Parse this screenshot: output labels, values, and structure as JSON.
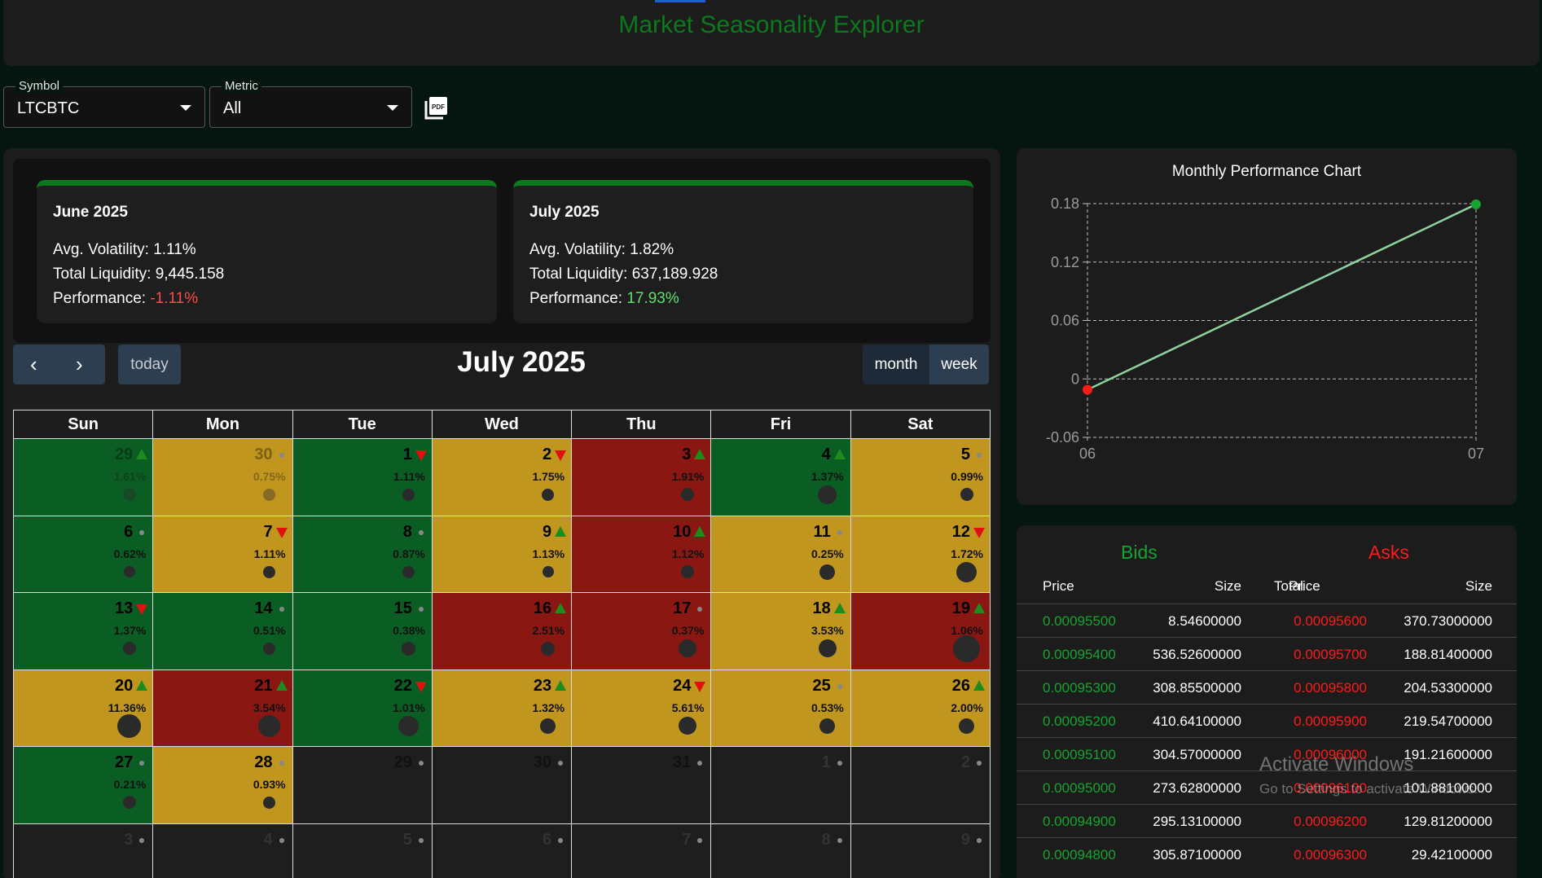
{
  "header": {
    "title": "Market Seasonality Explorer"
  },
  "controls": {
    "symbol": {
      "label": "Symbol",
      "value": "LTCBTC"
    },
    "metric": {
      "label": "Metric",
      "value": "All"
    },
    "pdf_icon": "pdf-icon"
  },
  "summary": [
    {
      "title": "June 2025",
      "volatility_label": "Avg. Volatility:",
      "volatility": "1.11%",
      "liquidity_label": "Total Liquidity:",
      "liquidity": "9,445.158",
      "performance_label": "Performance:",
      "performance": "-1.11%"
    },
    {
      "title": "July 2025",
      "volatility_label": "Avg. Volatility:",
      "volatility": "1.82%",
      "liquidity_label": "Total Liquidity:",
      "liquidity": "637,189.928",
      "performance_label": "Performance:",
      "performance": "17.93%"
    }
  ],
  "calendar": {
    "title": "July 2025",
    "today_label": "today",
    "month_label": "month",
    "week_label": "week",
    "weekdays": [
      "Sun",
      "Mon",
      "Tue",
      "Wed",
      "Thu",
      "Fri",
      "Sat"
    ],
    "colors": {
      "green": "#0b5e23",
      "yellow": "#c1961e",
      "red": "#8b1713"
    },
    "days": [
      {
        "d": "29",
        "pct": "1.61%",
        "color": "green",
        "trend": "up",
        "vol": 0.3,
        "outside": true
      },
      {
        "d": "30",
        "pct": "0.75%",
        "color": "yellow",
        "trend": "flat",
        "vol": 0.25,
        "outside": true
      },
      {
        "d": "1",
        "pct": "1.11%",
        "color": "green",
        "trend": "down",
        "vol": 0.25
      },
      {
        "d": "2",
        "pct": "1.75%",
        "color": "yellow",
        "trend": "down",
        "vol": 0.25
      },
      {
        "d": "3",
        "pct": "1.91%",
        "color": "red",
        "trend": "up",
        "vol": 0.3
      },
      {
        "d": "4",
        "pct": "1.37%",
        "color": "green",
        "trend": "up",
        "vol": 0.6
      },
      {
        "d": "5",
        "pct": "0.99%",
        "color": "yellow",
        "trend": "flat",
        "vol": 0.3
      },
      {
        "d": "6",
        "pct": "0.62%",
        "color": "green",
        "trend": "flat",
        "vol": 0.2
      },
      {
        "d": "7",
        "pct": "1.11%",
        "color": "yellow",
        "trend": "down",
        "vol": 0.25
      },
      {
        "d": "8",
        "pct": "0.87%",
        "color": "green",
        "trend": "flat",
        "vol": 0.25
      },
      {
        "d": "9",
        "pct": "1.13%",
        "color": "yellow",
        "trend": "up",
        "vol": 0.2
      },
      {
        "d": "10",
        "pct": "1.12%",
        "color": "red",
        "trend": "up",
        "vol": 0.3
      },
      {
        "d": "11",
        "pct": "0.25%",
        "color": "yellow",
        "trend": "flat",
        "vol": 0.4
      },
      {
        "d": "12",
        "pct": "1.72%",
        "color": "yellow",
        "trend": "down",
        "vol": 0.65
      },
      {
        "d": "13",
        "pct": "1.37%",
        "color": "green",
        "trend": "down",
        "vol": 0.3
      },
      {
        "d": "14",
        "pct": "0.51%",
        "color": "green",
        "trend": "flat",
        "vol": 0.25
      },
      {
        "d": "15",
        "pct": "0.38%",
        "color": "green",
        "trend": "flat",
        "vol": 0.35
      },
      {
        "d": "16",
        "pct": "2.51%",
        "color": "red",
        "trend": "up",
        "vol": 0.35
      },
      {
        "d": "17",
        "pct": "0.37%",
        "color": "red",
        "trend": "flat",
        "vol": 0.55
      },
      {
        "d": "18",
        "pct": "3.53%",
        "color": "yellow",
        "trend": "up",
        "vol": 0.55
      },
      {
        "d": "19",
        "pct": "1.06%",
        "color": "red",
        "trend": "up",
        "vol": 1.0
      },
      {
        "d": "20",
        "pct": "11.36%",
        "color": "yellow",
        "trend": "up",
        "vol": 0.85
      },
      {
        "d": "21",
        "pct": "3.54%",
        "color": "red",
        "trend": "up",
        "vol": 0.75
      },
      {
        "d": "22",
        "pct": "1.01%",
        "color": "green",
        "trend": "down",
        "vol": 0.65
      },
      {
        "d": "23",
        "pct": "1.32%",
        "color": "yellow",
        "trend": "up",
        "vol": 0.4
      },
      {
        "d": "24",
        "pct": "5.61%",
        "color": "yellow",
        "trend": "down",
        "vol": 0.55
      },
      {
        "d": "25",
        "pct": "0.53%",
        "color": "yellow",
        "trend": "flat",
        "vol": 0.4
      },
      {
        "d": "26",
        "pct": "2.00%",
        "color": "yellow",
        "trend": "up",
        "vol": 0.4
      },
      {
        "d": "27",
        "pct": "0.21%",
        "color": "green",
        "trend": "flat",
        "vol": 0.3
      },
      {
        "d": "28",
        "pct": "0.93%",
        "color": "yellow",
        "trend": "flat",
        "vol": 0.25
      },
      {
        "d": "29",
        "pct": "",
        "color": "empty",
        "trend": "flat",
        "vol": 0
      },
      {
        "d": "30",
        "pct": "",
        "color": "empty",
        "trend": "flat",
        "vol": 0
      },
      {
        "d": "31",
        "pct": "",
        "color": "empty",
        "trend": "flat",
        "vol": 0
      },
      {
        "d": "1",
        "pct": "",
        "color": "faint",
        "trend": "flat",
        "vol": 0
      },
      {
        "d": "2",
        "pct": "",
        "color": "faint",
        "trend": "flat",
        "vol": 0
      },
      {
        "d": "3",
        "pct": "",
        "color": "faint",
        "trend": "flat",
        "vol": 0
      },
      {
        "d": "4",
        "pct": "",
        "color": "faint",
        "trend": "flat",
        "vol": 0
      },
      {
        "d": "5",
        "pct": "",
        "color": "faint",
        "trend": "flat",
        "vol": 0
      },
      {
        "d": "6",
        "pct": "",
        "color": "faint",
        "trend": "flat",
        "vol": 0
      },
      {
        "d": "7",
        "pct": "",
        "color": "faint",
        "trend": "flat",
        "vol": 0
      },
      {
        "d": "8",
        "pct": "",
        "color": "faint",
        "trend": "flat",
        "vol": 0
      },
      {
        "d": "9",
        "pct": "",
        "color": "faint",
        "trend": "flat",
        "vol": 0
      }
    ]
  },
  "chart_data": {
    "type": "line",
    "title": "Monthly Performance Chart",
    "x": [
      "06",
      "07"
    ],
    "values": [
      -0.0111,
      0.1793
    ],
    "yticks": [
      "0.18",
      "0.12",
      "0.06",
      "0",
      "-0.06"
    ],
    "ylim": [
      -0.06,
      0.18
    ],
    "grid": true,
    "line_color": "#8fd19e",
    "point_colors": [
      "#ff1a1a",
      "#16a32e"
    ]
  },
  "orderbook": {
    "bids_label": "Bids",
    "asks_label": "Asks",
    "bid_headers": [
      "Price",
      "Size",
      "Total"
    ],
    "ask_headers": [
      "Price",
      "Size"
    ],
    "rows": [
      {
        "bid_price": "0.00095500",
        "bid_size": "8.54600000",
        "ask_price": "0.00095600",
        "ask_size": "370.73000000"
      },
      {
        "bid_price": "0.00095400",
        "bid_size": "536.52600000",
        "ask_price": "0.00095700",
        "ask_size": "188.81400000"
      },
      {
        "bid_price": "0.00095300",
        "bid_size": "308.85500000",
        "ask_price": "0.00095800",
        "ask_size": "204.53300000"
      },
      {
        "bid_price": "0.00095200",
        "bid_size": "410.64100000",
        "ask_price": "0.00095900",
        "ask_size": "219.54700000"
      },
      {
        "bid_price": "0.00095100",
        "bid_size": "304.57000000",
        "ask_price": "0.00096000",
        "ask_size": "191.21600000"
      },
      {
        "bid_price": "0.00095000",
        "bid_size": "273.62800000",
        "ask_price": "0.00096100",
        "ask_size": "101.88100000"
      },
      {
        "bid_price": "0.00094900",
        "bid_size": "295.13100000",
        "ask_price": "0.00096200",
        "ask_size": "129.81200000"
      },
      {
        "bid_price": "0.00094800",
        "bid_size": "305.87100000",
        "ask_price": "0.00096300",
        "ask_size": "29.42100000"
      }
    ]
  },
  "watermark": {
    "line1": "Activate Windows",
    "line2": "Go to Settings to activate Windows."
  }
}
